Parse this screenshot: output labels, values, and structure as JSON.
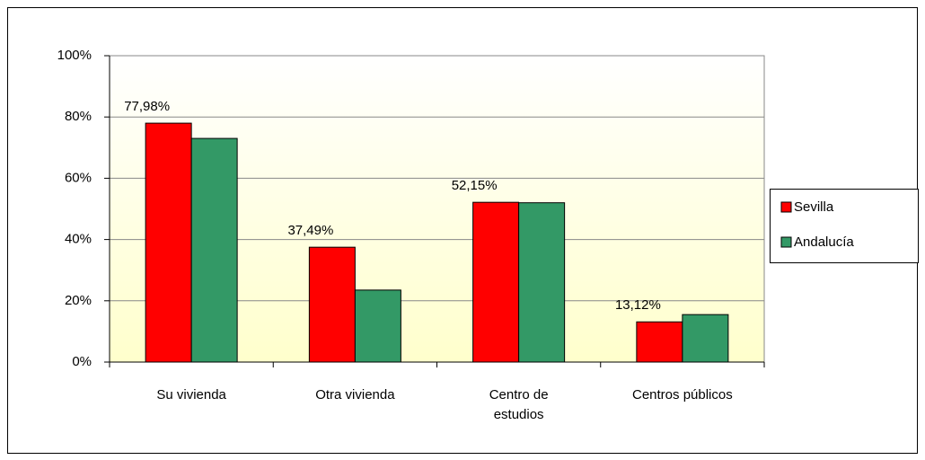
{
  "chart_data": {
    "type": "bar",
    "categories": [
      "Su vivienda",
      "Otra vivienda",
      "Centro de\nestudios",
      "Centros públicos"
    ],
    "series": [
      {
        "name": "Sevilla",
        "color": "#ff0000",
        "values": [
          77.98,
          37.49,
          52.15,
          13.12
        ],
        "value_labels": [
          "77,98%",
          "37,49%",
          "52,15%",
          "13,12%"
        ]
      },
      {
        "name": "Andalucía",
        "color": "#339966",
        "values": [
          73,
          23.5,
          52,
          15.5
        ]
      }
    ],
    "ylim": [
      0,
      100
    ],
    "yticks": [
      {
        "value": 0,
        "label": "0%"
      },
      {
        "value": 20,
        "label": "20%"
      },
      {
        "value": 40,
        "label": "40%"
      },
      {
        "value": 60,
        "label": "60%"
      },
      {
        "value": 80,
        "label": "80%"
      },
      {
        "value": 100,
        "label": "100%"
      }
    ],
    "grid": true,
    "legend": "right"
  }
}
